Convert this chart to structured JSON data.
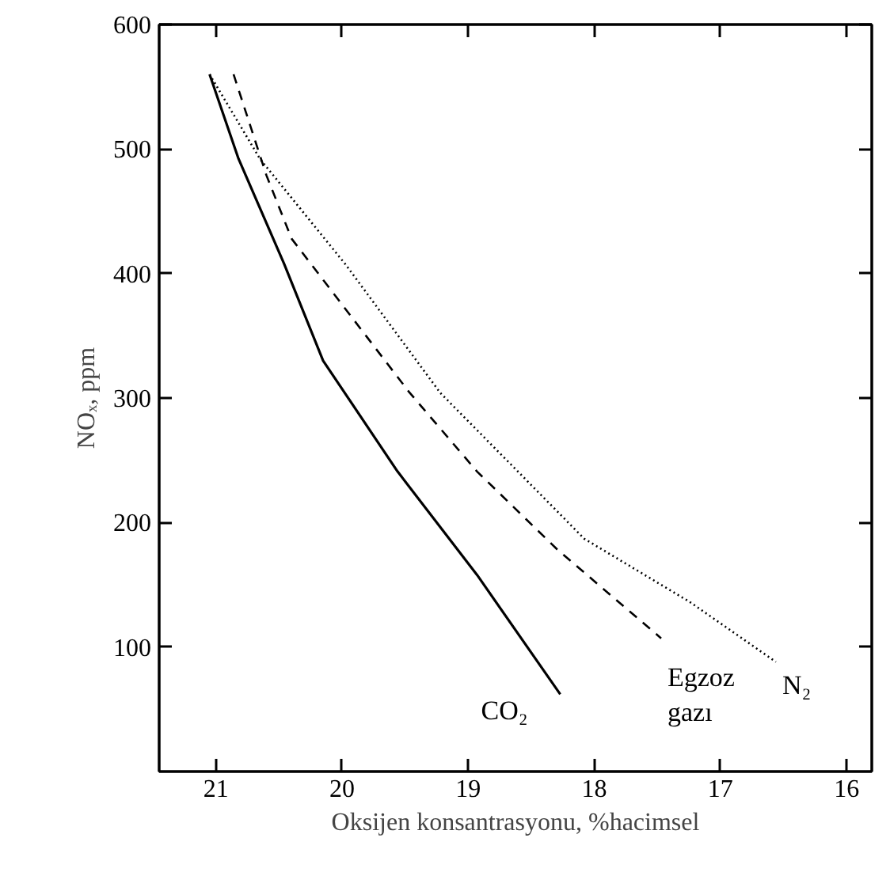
{
  "chart_data": {
    "type": "line",
    "xlabel": "Oksijen konsantrasyonu, %hacimsel",
    "ylabel": "NOₓ, ppm",
    "xlim": [
      21.45,
      15.8
    ],
    "xticks": [
      21,
      20,
      19,
      18,
      17,
      16
    ],
    "ylim": [
      0,
      600
    ],
    "yticks": [
      100,
      200,
      300,
      400,
      500,
      600
    ],
    "grid": false,
    "marker": "none",
    "series": [
      {
        "name": "CO₂",
        "color": "#000000",
        "line_style": "solid",
        "x": [
          21.05,
          20.82,
          20.46,
          20.15,
          19.56,
          18.93,
          18.27
        ],
        "values": [
          560,
          492,
          408,
          330,
          241,
          158,
          62
        ]
      },
      {
        "name": "Egzoz gazı",
        "color": "#000000",
        "line_style": "dashed",
        "x": [
          20.86,
          20.6,
          20.4,
          19.47,
          18.93,
          18.29,
          17.47
        ],
        "values": [
          560,
          479,
          428,
          305,
          241,
          178,
          107
        ]
      },
      {
        "name": "N₂",
        "color": "#000000",
        "line_style": "dotted",
        "x": [
          21.05,
          20.65,
          19.97,
          19.22,
          18.08,
          17.24,
          16.56
        ],
        "values": [
          560,
          492,
          407,
          304,
          187,
          136,
          88
        ]
      }
    ]
  }
}
